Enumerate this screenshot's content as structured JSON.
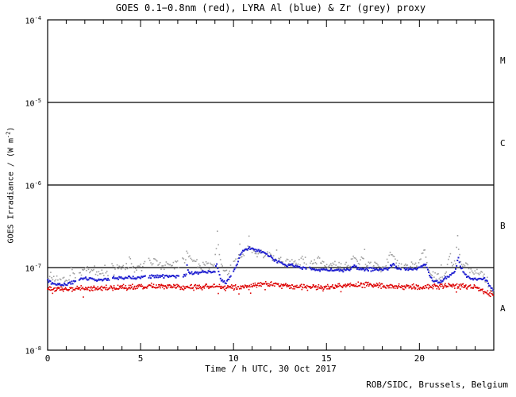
{
  "page": {
    "title": "GOES 0.1−0.8nm (red), LYRA Al (blue) & Zr (grey) proxy",
    "xlabel": "Time / h UTC, 30 Oct 2017",
    "ylabel_main": "GOES Irradiance / (W m",
    "ylabel_sup": "-2",
    "ylabel_close": ")",
    "footer": "ROB/SIDC, Brussels, Belgium"
  },
  "chart_data": {
    "type": "scatter",
    "title": "GOES 0.1−0.8nm (red), LYRA Al (blue) & Zr (grey) proxy",
    "xlabel": "Time / h UTC, 30 Oct 2017",
    "ylabel": "GOES Irradiance / (W m^-2)",
    "x_range_hours": [
      0,
      24
    ],
    "x_major_ticks": [
      0,
      5,
      10,
      15,
      20
    ],
    "x_minor_step_hours": 1,
    "y_scale": "log",
    "y_range": [
      1e-08,
      0.0001
    ],
    "y_decade_exponents": [
      -4,
      -5,
      -6,
      -7,
      -8
    ],
    "hline_values": [
      1e-05,
      1e-06,
      1e-07
    ],
    "grid": "off",
    "legend_position": "none",
    "flare_class_labels": [
      {
        "label": "M",
        "mid_exp": -4.5
      },
      {
        "label": "C",
        "mid_exp": -5.5
      },
      {
        "label": "B",
        "mid_exp": -6.5
      },
      {
        "label": "A",
        "mid_exp": -7.5
      }
    ],
    "series": [
      {
        "name": "GOES 0.1-0.8nm",
        "color": "#dd0000",
        "marker_px": 1.6,
        "step_hours": 0.03,
        "noise_sigma_log10": 0.02,
        "outlier_prob": 0.02,
        "outlier_log10": -0.07,
        "gaps": [],
        "keypoints": [
          [
            0,
            5.6e-08
          ],
          [
            1,
            5.5e-08
          ],
          [
            2,
            5.6e-08
          ],
          [
            3,
            5.6e-08
          ],
          [
            4,
            5.7e-08
          ],
          [
            5,
            5.8e-08
          ],
          [
            6,
            5.9e-08
          ],
          [
            7,
            5.9e-08
          ],
          [
            8,
            5.8e-08
          ],
          [
            9,
            5.9e-08
          ],
          [
            10,
            5.8e-08
          ],
          [
            10.8,
            6e-08
          ],
          [
            11.5,
            6.4e-08
          ],
          [
            12.2,
            6.2e-08
          ],
          [
            13,
            6e-08
          ],
          [
            14,
            5.9e-08
          ],
          [
            15,
            5.8e-08
          ],
          [
            16,
            6e-08
          ],
          [
            17,
            6.3e-08
          ],
          [
            18,
            6.1e-08
          ],
          [
            19,
            5.9e-08
          ],
          [
            20,
            5.8e-08
          ],
          [
            21,
            5.9e-08
          ],
          [
            21.8,
            6.1e-08
          ],
          [
            22.5,
            5.9e-08
          ],
          [
            23.2,
            5.6e-08
          ],
          [
            23.6,
            5e-08
          ],
          [
            24,
            4.6e-08
          ]
        ]
      },
      {
        "name": "LYRA Zr proxy",
        "color": "#a0a0a0",
        "marker_px": 1.6,
        "step_hours": 0.055,
        "noise_sigma_log10": 0.035,
        "outlier_prob": 0.03,
        "outlier_log10": 0.1,
        "gaps": [
          [
            1.52,
            1.7
          ],
          [
            3.3,
            3.45
          ],
          [
            5.25,
            5.4
          ],
          [
            7.05,
            7.25
          ],
          [
            9.86,
            9.98
          ],
          [
            13.95,
            14.08
          ],
          [
            19.05,
            19.18
          ]
        ],
        "keypoints": [
          [
            0,
            7.8e-08
          ],
          [
            0.4,
            7e-08
          ],
          [
            0.8,
            6.8e-08
          ],
          [
            1.2,
            7.2e-08
          ],
          [
            1.28,
            1.05e-07
          ],
          [
            1.35,
            8.2e-08
          ],
          [
            1.55,
            8e-08
          ],
          [
            1.8,
            8.8e-08
          ],
          [
            2.0,
            9.7e-08
          ],
          [
            2.3,
            9.2e-08
          ],
          [
            2.6,
            9e-08
          ],
          [
            3.0,
            9e-08
          ],
          [
            3.4,
            9.5e-08
          ],
          [
            3.8,
            1e-07
          ],
          [
            4.3,
            9.7e-08
          ],
          [
            4.5,
            1.15e-07
          ],
          [
            4.6,
            1e-07
          ],
          [
            5.0,
            1e-07
          ],
          [
            5.45,
            1.35e-07
          ],
          [
            5.6,
            1.1e-07
          ],
          [
            5.85,
            1.3e-07
          ],
          [
            6.0,
            1.12e-07
          ],
          [
            6.5,
            1.08e-07
          ],
          [
            7.0,
            1.15e-07
          ],
          [
            7.45,
            1.3e-07
          ],
          [
            7.5,
            1.7e-07
          ],
          [
            7.6,
            1.35e-07
          ],
          [
            7.9,
            1.2e-07
          ],
          [
            8.3,
            1.08e-07
          ],
          [
            8.7,
            1.05e-07
          ],
          [
            9.0,
            1.1e-07
          ],
          [
            9.08,
            1.8e-07
          ],
          [
            9.12,
            2.8e-07
          ],
          [
            9.2,
            1.6e-07
          ],
          [
            9.35,
            1.1e-07
          ],
          [
            9.55,
            8.2e-08
          ],
          [
            9.75,
            9e-08
          ],
          [
            9.95,
            1.05e-07
          ],
          [
            10.2,
            1.25e-07
          ],
          [
            10.5,
            1.45e-07
          ],
          [
            10.75,
            1.55e-07
          ],
          [
            10.82,
            2.7e-07
          ],
          [
            10.9,
            1.8e-07
          ],
          [
            11.1,
            1.6e-07
          ],
          [
            11.4,
            1.5e-07
          ],
          [
            11.8,
            1.42e-07
          ],
          [
            12.2,
            1.3e-07
          ],
          [
            12.6,
            1.22e-07
          ],
          [
            13.0,
            1.15e-07
          ],
          [
            13.5,
            1.12e-07
          ],
          [
            13.6,
            1.25e-07
          ],
          [
            13.75,
            1.15e-07
          ],
          [
            14.1,
            1.12e-07
          ],
          [
            14.55,
            1.28e-07
          ],
          [
            14.8,
            1.15e-07
          ],
          [
            15.3,
            1.05e-07
          ],
          [
            15.8,
            1e-07
          ],
          [
            16.3,
            1.05e-07
          ],
          [
            16.45,
            1.45e-07
          ],
          [
            16.6,
            1.2e-07
          ],
          [
            17.0,
            1.3e-07
          ],
          [
            17.15,
            1.12e-07
          ],
          [
            17.6,
            1.05e-07
          ],
          [
            18.1,
            1e-07
          ],
          [
            18.6,
            1.55e-07
          ],
          [
            18.8,
            1.15e-07
          ],
          [
            19.3,
            1.05e-07
          ],
          [
            19.9,
            1e-07
          ],
          [
            20.25,
            1.7e-07
          ],
          [
            20.45,
            1.1e-07
          ],
          [
            20.65,
            8.5e-08
          ],
          [
            20.9,
            7.6e-08
          ],
          [
            21.3,
            7.8e-08
          ],
          [
            21.65,
            1.4e-07
          ],
          [
            21.75,
            9.5e-08
          ],
          [
            21.95,
            1.2e-07
          ],
          [
            22.05,
            2.3e-07
          ],
          [
            22.15,
            1.5e-07
          ],
          [
            22.3,
            1.15e-07
          ],
          [
            22.6,
            1e-07
          ],
          [
            22.9,
            9e-08
          ],
          [
            23.3,
            8.5e-08
          ],
          [
            23.6,
            7.2e-08
          ],
          [
            23.8,
            5.5e-08
          ],
          [
            24,
            4.8e-08
          ]
        ]
      },
      {
        "name": "LYRA Al proxy",
        "color": "#2020d0",
        "marker_px": 2.0,
        "step_hours": 0.05,
        "noise_sigma_log10": 0.012,
        "outlier_prob": 0.0,
        "outlier_log10": 0,
        "gaps": [
          [
            1.52,
            1.7
          ],
          [
            3.3,
            3.45
          ],
          [
            5.25,
            5.4
          ],
          [
            7.05,
            7.25
          ],
          [
            9.86,
            9.98
          ],
          [
            13.95,
            14.08
          ],
          [
            19.05,
            19.18
          ]
        ],
        "keypoints": [
          [
            0,
            6.9e-08
          ],
          [
            0.4,
            6.4e-08
          ],
          [
            0.8,
            6.2e-08
          ],
          [
            1.3,
            6.6e-08
          ],
          [
            1.55,
            7e-08
          ],
          [
            1.8,
            7.4e-08
          ],
          [
            2.2,
            7.3e-08
          ],
          [
            3.0,
            7.1e-08
          ],
          [
            3.4,
            7.4e-08
          ],
          [
            4.0,
            7.5e-08
          ],
          [
            5.0,
            7.5e-08
          ],
          [
            5.5,
            7.8e-08
          ],
          [
            6.5,
            7.9e-08
          ],
          [
            7.2,
            8e-08
          ],
          [
            7.45,
            8.2e-08
          ],
          [
            7.5,
            1.1e-07
          ],
          [
            7.58,
            8.6e-08
          ],
          [
            8.0,
            8.6e-08
          ],
          [
            8.6,
            8.8e-08
          ],
          [
            9.0,
            9e-08
          ],
          [
            9.08,
            1.15e-07
          ],
          [
            9.15,
            9.5e-08
          ],
          [
            9.35,
            7e-08
          ],
          [
            9.55,
            6.4e-08
          ],
          [
            9.75,
            7.2e-08
          ],
          [
            9.95,
            8.5e-08
          ],
          [
            10.15,
            1.05e-07
          ],
          [
            10.4,
            1.5e-07
          ],
          [
            10.7,
            1.7e-07
          ],
          [
            11.0,
            1.72e-07
          ],
          [
            11.2,
            1.62e-07
          ],
          [
            11.5,
            1.55e-07
          ],
          [
            11.8,
            1.45e-07
          ],
          [
            12.1,
            1.3e-07
          ],
          [
            12.4,
            1.18e-07
          ],
          [
            12.8,
            1.08e-07
          ],
          [
            13.3,
            1.03e-07
          ],
          [
            13.8,
            1e-07
          ],
          [
            14.1,
            9.7e-08
          ],
          [
            14.5,
            9.4e-08
          ],
          [
            15.5,
            9.3e-08
          ],
          [
            16.3,
            9.5e-08
          ],
          [
            16.5,
            1.04e-07
          ],
          [
            16.7,
            9.7e-08
          ],
          [
            17.5,
            9.4e-08
          ],
          [
            18.3,
            9.5e-08
          ],
          [
            18.6,
            1.15e-07
          ],
          [
            18.75,
            1e-07
          ],
          [
            19.3,
            9.6e-08
          ],
          [
            19.9,
            9.7e-08
          ],
          [
            20.2,
            1.05e-07
          ],
          [
            20.35,
            1.1e-07
          ],
          [
            20.55,
            8e-08
          ],
          [
            20.8,
            6.7e-08
          ],
          [
            21.2,
            6.8e-08
          ],
          [
            21.6,
            8e-08
          ],
          [
            21.9,
            8.8e-08
          ],
          [
            22.0,
            1.05e-07
          ],
          [
            22.08,
            1.35e-07
          ],
          [
            22.2,
            1.05e-07
          ],
          [
            22.35,
            9e-08
          ],
          [
            22.6,
            7.8e-08
          ],
          [
            22.9,
            7.2e-08
          ],
          [
            23.3,
            7.4e-08
          ],
          [
            23.6,
            7e-08
          ],
          [
            23.8,
            6e-08
          ],
          [
            24,
            5.2e-08
          ]
        ]
      }
    ]
  }
}
